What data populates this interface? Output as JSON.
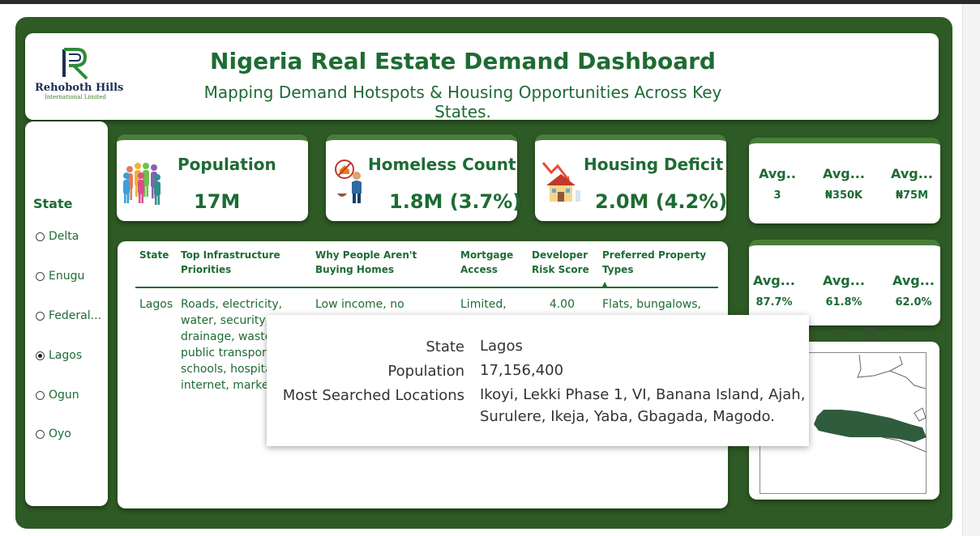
{
  "header": {
    "logo_name": "Rehoboth Hills",
    "logo_sub": "International Limited",
    "title": "Nigeria Real Estate Demand Dashboard",
    "subtitle": "Mapping Demand Hotspots & Housing Opportunities Across Key States."
  },
  "slicer": {
    "title": "State",
    "items": [
      {
        "label": "Delta",
        "selected": false
      },
      {
        "label": "Enugu",
        "selected": false
      },
      {
        "label": "Federal...",
        "selected": false
      },
      {
        "label": "Lagos",
        "selected": true
      },
      {
        "label": "Ogun",
        "selected": false
      },
      {
        "label": "Oyo",
        "selected": false
      }
    ]
  },
  "kpis": {
    "population": {
      "label": "Population",
      "value": "17M",
      "icon": "people-group-icon"
    },
    "homeless": {
      "label": "Homeless Count",
      "value": "1.8M (3.7%)",
      "icon": "homeless-person-icon"
    },
    "deficit": {
      "label": "Housing Deficit",
      "value": "2.0M (4.2%)",
      "icon": "house-decline-icon"
    }
  },
  "avg_top": [
    {
      "name": "Avg..",
      "value": "3"
    },
    {
      "name": "Avg...",
      "value": "₦350K"
    },
    {
      "name": "Avg...",
      "value": "₦75M"
    }
  ],
  "avg_bottom": [
    {
      "name": "Avg...",
      "value": "87.7%"
    },
    {
      "name": "Avg...",
      "value": "61.8%"
    },
    {
      "name": "Avg...",
      "value": "62.0%"
    }
  ],
  "table": {
    "headers": [
      "State",
      "Top Infrastructure Priorities",
      "Why People Aren't Buying Homes",
      "Mortgage Access",
      "Developer Risk Score",
      "Preferred Property Types"
    ],
    "row": {
      "state": "Lagos",
      "infrastructure": "Roads, electricity, water, security, drainage, waste, public transport, schools, hospitals, internet, markets",
      "why": "Low income, no",
      "mortgage": "Limited,",
      "risk": "4.00",
      "types": "Flats, bungalows,"
    }
  },
  "tooltip": {
    "state_key": "State",
    "state_val": "Lagos",
    "population_key": "Population",
    "population_val": "17,156,400",
    "locations_key": "Most Searched Locations",
    "locations_val_1": "Ikoyi, Lekki Phase 1, VI, Banana Island, Ajah,",
    "locations_val_2": "Surulere, Ikeja, Yaba, Gbagada, Magodo."
  },
  "map_tools": [
    "filter-icon",
    "focus-mode-icon",
    "more-options-icon"
  ],
  "colors": {
    "canvas": "#2e5a25",
    "accent": "#4a7d3a",
    "text_green": "#1e6b34",
    "map_fill": "#2f5c3d"
  }
}
